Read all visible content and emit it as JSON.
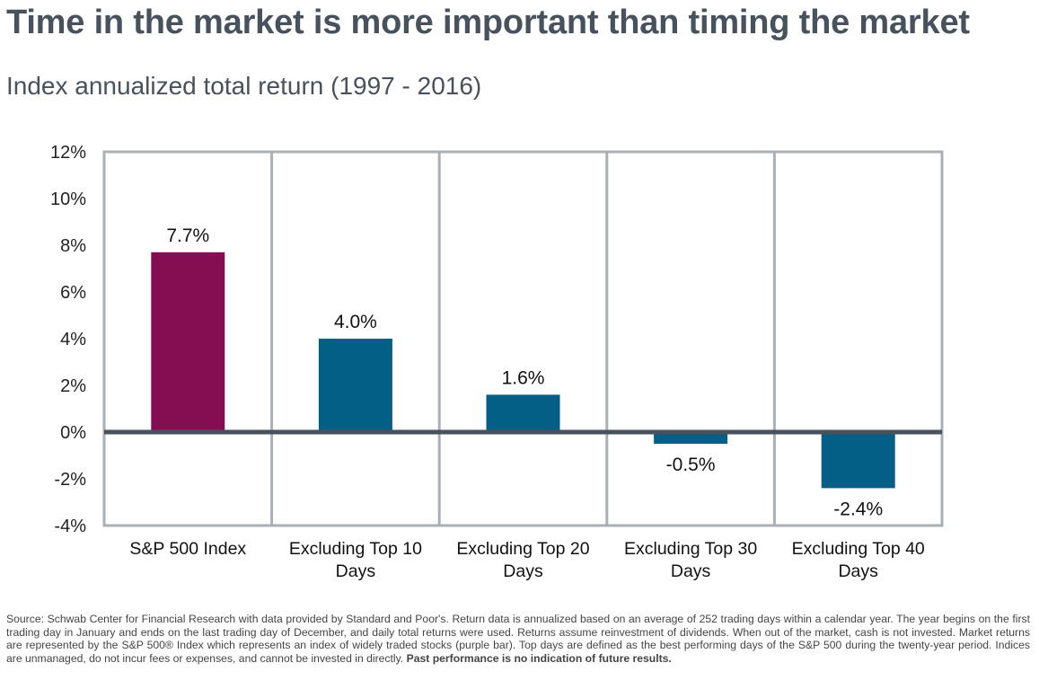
{
  "title": "Time in the market is more important than timing the market",
  "subtitle": "Index annualized total return (1997 - 2016)",
  "chart_data": {
    "type": "bar",
    "categories": [
      [
        "S&P 500 Index"
      ],
      [
        "Excluding Top 10",
        "Days"
      ],
      [
        "Excluding Top 20",
        "Days"
      ],
      [
        "Excluding Top 30",
        "Days"
      ],
      [
        "Excluding Top 40",
        "Days"
      ]
    ],
    "values": [
      7.7,
      4.0,
      1.6,
      -0.5,
      -2.4
    ],
    "data_labels": [
      "7.7%",
      "4.0%",
      "1.6%",
      "-0.5%",
      "-2.4%"
    ],
    "bar_colors": [
      "#850d52",
      "#045f86",
      "#045f86",
      "#045f86",
      "#045f86"
    ],
    "ylim": [
      -4,
      12
    ],
    "yticks": [
      12,
      10,
      8,
      6,
      4,
      2,
      0,
      -2,
      -4
    ],
    "ytick_labels": [
      "12%",
      "10%",
      "8%",
      "6%",
      "4%",
      "2%",
      "0%",
      "-2%",
      "-4%"
    ],
    "grid": "vertical separators between categories",
    "zero_line_color": "#47525d",
    "frame_color": "#a8b0b6"
  },
  "source": {
    "text": "Source: Schwab Center for Financial Research with data provided by Standard and Poor's. Return data is annualized based on an average of 252 trading days within a calendar year. The year begins on the first trading day in January and ends on the last trading day of December, and daily total returns were used. Returns assume reinvestment of dividends. When out of the market, cash is not invested. Market returns are represented by the S&P 500® Index which represents an index of widely traded stocks (purple bar). Top days are defined as the best performing days of the S&P 500 during the twenty-year period. Indices are unmanaged, do not incur fees or expenses, and cannot be invested in directly. ",
    "bold_text": "Past performance is no indication of future results."
  }
}
